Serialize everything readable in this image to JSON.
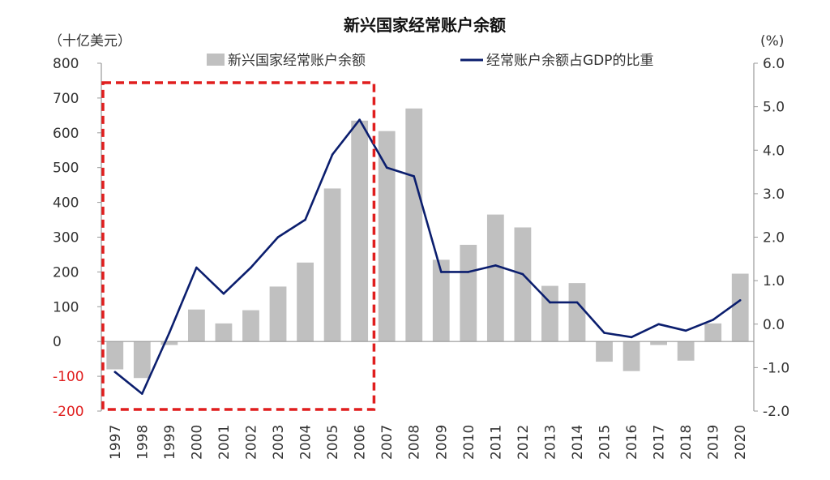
{
  "chart_data": {
    "type": "bar+line",
    "title": "新兴国家经常账户余额",
    "left_unit": "（十亿美元）",
    "right_unit": "(%)",
    "categories": [
      "1997",
      "1998",
      "1999",
      "2000",
      "2001",
      "2002",
      "2003",
      "2004",
      "2005",
      "2006",
      "2007",
      "2008",
      "2009",
      "2010",
      "2011",
      "2012",
      "2013",
      "2014",
      "2015",
      "2016",
      "2017",
      "2018",
      "2019",
      "2020"
    ],
    "series": [
      {
        "name": "新兴国家经常账户余额",
        "type": "bar",
        "axis": "left",
        "color": "#c0c0c0",
        "values": [
          -80,
          -105,
          -10,
          92,
          52,
          90,
          158,
          227,
          440,
          635,
          605,
          670,
          235,
          278,
          365,
          328,
          160,
          168,
          -58,
          -85,
          -10,
          -55,
          52,
          195
        ]
      },
      {
        "name": "经常账户余额占GDP的比重",
        "type": "line",
        "axis": "right",
        "color": "#0b1e6e",
        "values": [
          -1.1,
          -1.6,
          -0.2,
          1.3,
          0.7,
          1.3,
          2.0,
          2.4,
          3.9,
          4.7,
          3.6,
          3.4,
          1.2,
          1.2,
          1.35,
          1.15,
          0.5,
          0.5,
          -0.2,
          -0.3,
          0.0,
          -0.15,
          0.1,
          0.55
        ]
      }
    ],
    "left_axis": {
      "ylim": [
        -200,
        800
      ],
      "ticks": [
        800,
        700,
        600,
        500,
        400,
        300,
        200,
        100,
        0,
        -100,
        -200
      ],
      "tick_labels": [
        "800",
        "700",
        "600",
        "500",
        "400",
        "300",
        "200",
        "100",
        "0",
        "-100",
        "-200"
      ],
      "negative_color": "#e01e1e"
    },
    "right_axis": {
      "ylim": [
        -2.0,
        6.0
      ],
      "ticks": [
        6.0,
        5.0,
        4.0,
        3.0,
        2.0,
        1.0,
        0.0,
        -1.0,
        -2.0
      ],
      "tick_labels": [
        "6.0",
        "5.0",
        "4.0",
        "3.0",
        "2.0",
        "1.0",
        "0.0",
        "-1.0",
        "-2.0"
      ]
    },
    "highlight": {
      "from": "1997",
      "to": "2006",
      "style": "dashed",
      "color": "#e01e1e"
    },
    "legend_position": "top",
    "grid": false
  }
}
